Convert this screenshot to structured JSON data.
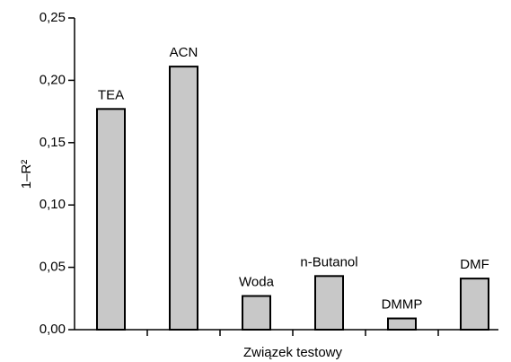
{
  "chart_data": {
    "type": "bar",
    "categories": [
      "TEA",
      "ACN",
      "Woda",
      "n-Butanol",
      "DMMP",
      "DMF"
    ],
    "values": [
      0.177,
      0.211,
      0.027,
      0.043,
      0.009,
      0.041
    ],
    "color": "#c8c8c8",
    "ylabel": "1–R²",
    "xlabel": "Związek testowy",
    "ylim": [
      0,
      0.25
    ],
    "yticks": [
      {
        "value": 0,
        "label": "0,00"
      },
      {
        "value": 0.05,
        "label": "0,05"
      },
      {
        "value": 0.1,
        "label": "0,10"
      },
      {
        "value": 0.15,
        "label": "0,15"
      },
      {
        "value": 0.2,
        "label": "0,20"
      },
      {
        "value": 0.25,
        "label": "0,25"
      }
    ],
    "grid": false
  }
}
